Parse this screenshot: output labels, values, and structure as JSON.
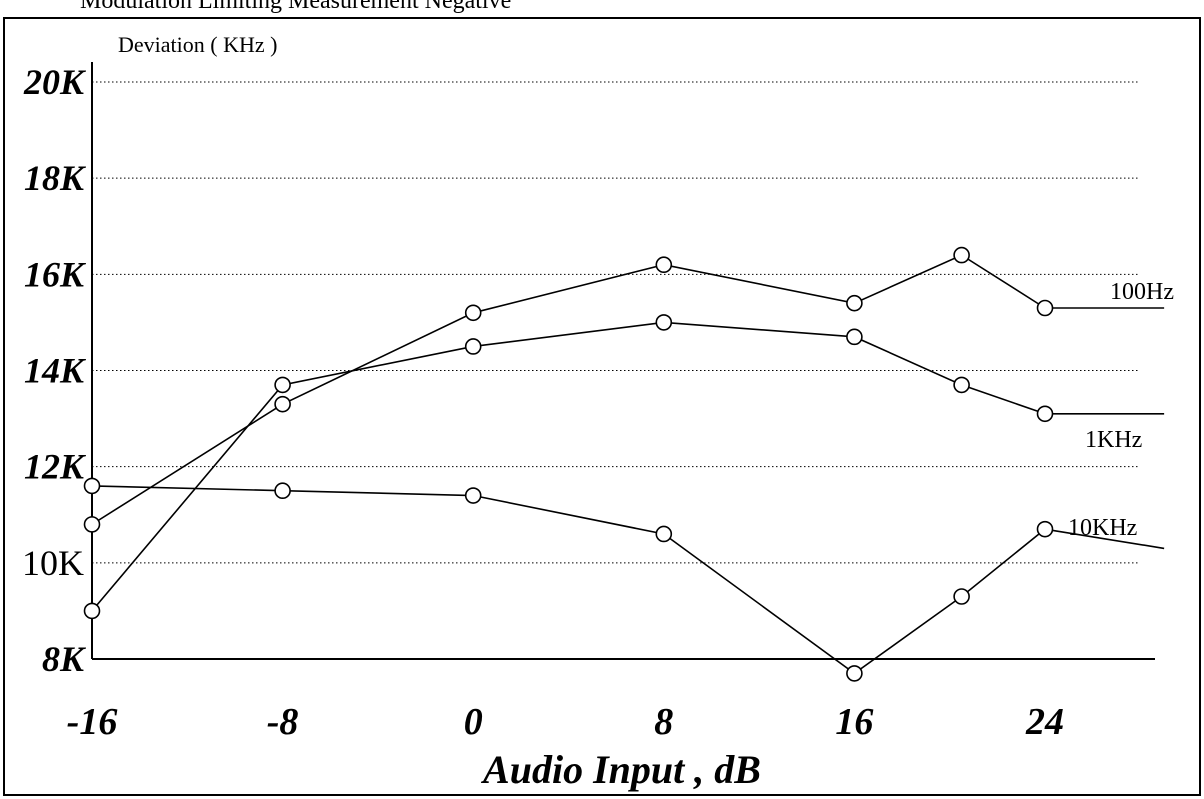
{
  "page_heading": "Modulation Limiting Measurement Negative",
  "chart_data": {
    "type": "line",
    "ylabel": "Deviation ( KHz )",
    "xlabel": "Audio Input , dB",
    "x_ticks": [
      "-16",
      "-8",
      "0",
      "8",
      "16",
      "24"
    ],
    "y_ticks": [
      {
        "value": 8,
        "label": "8K",
        "style": "bold-italic"
      },
      {
        "value": 10,
        "label": "10K",
        "style": "regular"
      },
      {
        "value": 12,
        "label": "12K",
        "style": "bold-italic"
      },
      {
        "value": 14,
        "label": "14K",
        "style": "bold-italic"
      },
      {
        "value": 16,
        "label": "16K",
        "style": "bold-italic"
      },
      {
        "value": 18,
        "label": "18K",
        "style": "bold-italic"
      },
      {
        "value": 20,
        "label": "20K",
        "style": "bold-italic"
      }
    ],
    "xlim": [
      -16,
      24
    ],
    "ylim": [
      8,
      20
    ],
    "grid": "horizontal-dotted",
    "series": [
      {
        "name": "100Hz",
        "points": [
          [
            -16,
            10.8
          ],
          [
            -8,
            13.3
          ],
          [
            0,
            15.2
          ],
          [
            8,
            16.2
          ],
          [
            16,
            15.4
          ],
          [
            20.5,
            16.4
          ],
          [
            24,
            15.3
          ]
        ],
        "tail_to": [
          29,
          15.3
        ]
      },
      {
        "name": "1KHz",
        "points": [
          [
            -16,
            9.0
          ],
          [
            -8,
            13.7
          ],
          [
            0,
            14.5
          ],
          [
            8,
            15.0
          ],
          [
            16,
            14.7
          ],
          [
            20.5,
            13.7
          ],
          [
            24,
            13.1
          ]
        ],
        "tail_to": [
          29,
          13.1
        ]
      },
      {
        "name": "10KHz",
        "points": [
          [
            -16,
            11.6
          ],
          [
            -8,
            11.5
          ],
          [
            0,
            11.4
          ],
          [
            8,
            10.6
          ],
          [
            16,
            7.7
          ],
          [
            20.5,
            9.3
          ],
          [
            24,
            10.7
          ]
        ],
        "tail_to": [
          29,
          10.3
        ]
      }
    ]
  }
}
